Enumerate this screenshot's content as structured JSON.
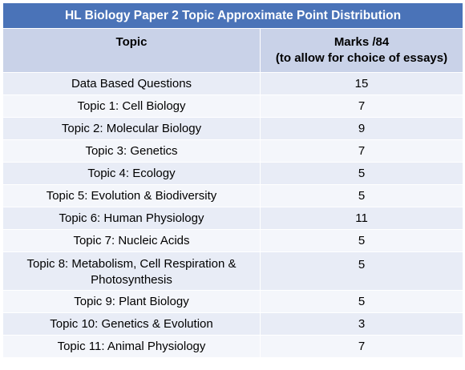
{
  "chart_data": {
    "type": "table",
    "title": "HL Biology Paper 2 Topic Approximate Point Distribution",
    "columns": [
      "Topic",
      "Marks /84",
      "(to allow for choice of essays)"
    ],
    "rows": [
      {
        "topic": "Data Based Questions",
        "marks": "15"
      },
      {
        "topic": "Topic 1: Cell Biology",
        "marks": "7"
      },
      {
        "topic": "Topic 2: Molecular Biology",
        "marks": "9"
      },
      {
        "topic": "Topic 3: Genetics",
        "marks": "7"
      },
      {
        "topic": "Topic 4: Ecology",
        "marks": "5"
      },
      {
        "topic": "Topic 5: Evolution & Biodiversity",
        "marks": "5"
      },
      {
        "topic": "Topic 6: Human Physiology",
        "marks": "11"
      },
      {
        "topic": "Topic 7: Nucleic Acids",
        "marks": "5"
      },
      {
        "topic": "Topic 8: Metabolism, Cell Respiration & Photosynthesis",
        "marks": "5"
      },
      {
        "topic": "Topic 9: Plant Biology",
        "marks": "5"
      },
      {
        "topic": "Topic 10: Genetics & Evolution",
        "marks": "3"
      },
      {
        "topic": "Topic 11: Animal Physiology",
        "marks": "7"
      }
    ]
  },
  "colors": {
    "title_bg": "#4a73b8",
    "header_bg": "#c9d2e8",
    "row_odd_bg": "#e8ecf6",
    "row_even_bg": "#f4f6fb"
  }
}
